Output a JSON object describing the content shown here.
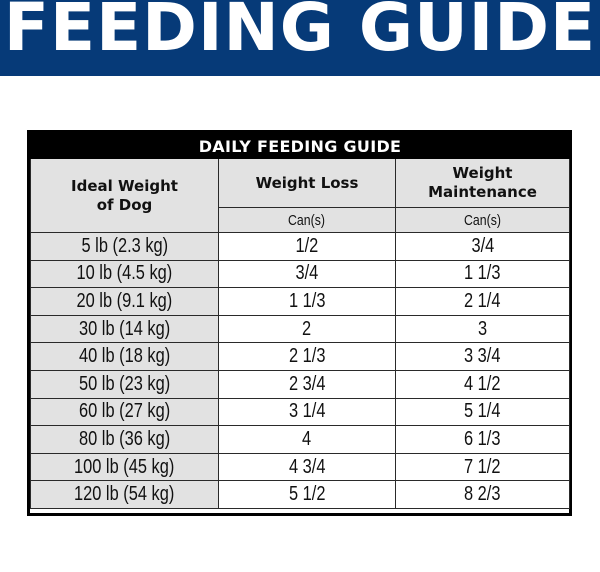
{
  "banner": {
    "title": "FEEDING GUIDE",
    "color": "#063a78"
  },
  "table": {
    "caption": "DAILY FEEDING GUIDE",
    "headers": {
      "weight": "Ideal Weight of Dog",
      "loss": "Weight Loss",
      "maintenance": "Weight Maintenance"
    },
    "units": {
      "loss": "Can(s)",
      "maintenance": "Can(s)"
    },
    "rows": [
      {
        "weight": "5 lb (2.3 kg)",
        "loss": "1/2",
        "maintenance": "3/4"
      },
      {
        "weight": "10 lb (4.5 kg)",
        "loss": "3/4",
        "maintenance": "1 1/3"
      },
      {
        "weight": "20 lb (9.1 kg)",
        "loss": "1 1/3",
        "maintenance": "2 1/4"
      },
      {
        "weight": "30 lb (14 kg)",
        "loss": "2",
        "maintenance": "3"
      },
      {
        "weight": "40 lb (18 kg)",
        "loss": "2 1/3",
        "maintenance": "3 3/4"
      },
      {
        "weight": "50 lb (23 kg)",
        "loss": "2 3/4",
        "maintenance": "4 1/2"
      },
      {
        "weight": "60 lb (27 kg)",
        "loss": "3 1/4",
        "maintenance": "5 1/4"
      },
      {
        "weight": "80 lb (36 kg)",
        "loss": "4",
        "maintenance": "6 1/3"
      },
      {
        "weight": "100 lb (45 kg)",
        "loss": "4 3/4",
        "maintenance": "7 1/2"
      },
      {
        "weight": "120 lb (54 kg)",
        "loss": "5 1/2",
        "maintenance": "8 2/3"
      }
    ]
  }
}
